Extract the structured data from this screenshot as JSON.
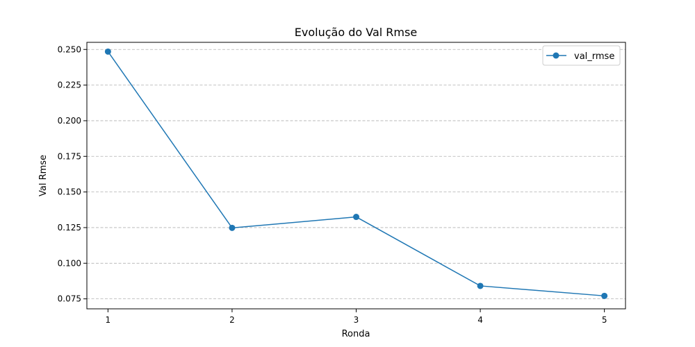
{
  "chart_data": {
    "type": "line",
    "title": "Evolução do Val Rmse",
    "xlabel": "Ronda",
    "ylabel": "Val Rmse",
    "x": [
      1,
      2,
      3,
      4,
      5
    ],
    "x_tick_labels": [
      "1",
      "2",
      "3",
      "4",
      "5"
    ],
    "y_ticks": [
      0.075,
      0.1,
      0.125,
      0.15,
      0.175,
      0.2,
      0.225,
      0.25
    ],
    "y_tick_labels": [
      "0.075",
      "0.100",
      "0.125",
      "0.150",
      "0.175",
      "0.200",
      "0.225",
      "0.250"
    ],
    "ylim": [
      0.068,
      0.255
    ],
    "xlim": [
      0.83,
      5.17
    ],
    "grid": "horizontal dashed",
    "legend_position": "top-right",
    "series": [
      {
        "name": "val_rmse",
        "color": "#1f77b4",
        "values": [
          0.2485,
          0.1248,
          0.1325,
          0.0841,
          0.0771
        ]
      }
    ]
  }
}
